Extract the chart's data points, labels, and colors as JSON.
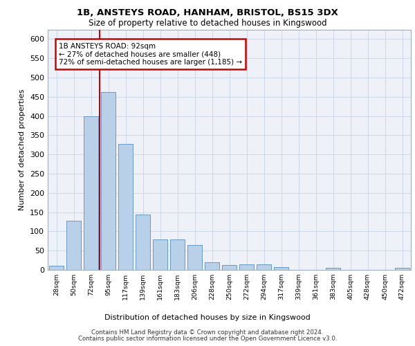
{
  "title1": "1B, ANSTEYS ROAD, HANHAM, BRISTOL, BS15 3DX",
  "title2": "Size of property relative to detached houses in Kingswood",
  "xlabel": "Distribution of detached houses by size in Kingswood",
  "ylabel": "Number of detached properties",
  "bar_color": "#b8d0e8",
  "bar_edge_color": "#6899c8",
  "annotation_box_color": "#cc0000",
  "property_line_color": "#cc0000",
  "annotation_line1": "1B ANSTEYS ROAD: 92sqm",
  "annotation_line2": "← 27% of detached houses are smaller (448)",
  "annotation_line3": "72% of semi-detached houses are larger (1,185) →",
  "categories": [
    "28sqm",
    "50sqm",
    "72sqm",
    "95sqm",
    "117sqm",
    "139sqm",
    "161sqm",
    "183sqm",
    "206sqm",
    "228sqm",
    "250sqm",
    "272sqm",
    "294sqm",
    "317sqm",
    "339sqm",
    "361sqm",
    "383sqm",
    "405sqm",
    "428sqm",
    "450sqm",
    "472sqm"
  ],
  "values": [
    10,
    127,
    400,
    463,
    328,
    143,
    80,
    80,
    65,
    20,
    12,
    15,
    15,
    7,
    0,
    0,
    5,
    0,
    0,
    0,
    5
  ],
  "ylim": [
    0,
    625
  ],
  "yticks": [
    0,
    50,
    100,
    150,
    200,
    250,
    300,
    350,
    400,
    450,
    500,
    550,
    600
  ],
  "footer1": "Contains HM Land Registry data © Crown copyright and database right 2024.",
  "footer2": "Contains public sector information licensed under the Open Government Licence v3.0."
}
